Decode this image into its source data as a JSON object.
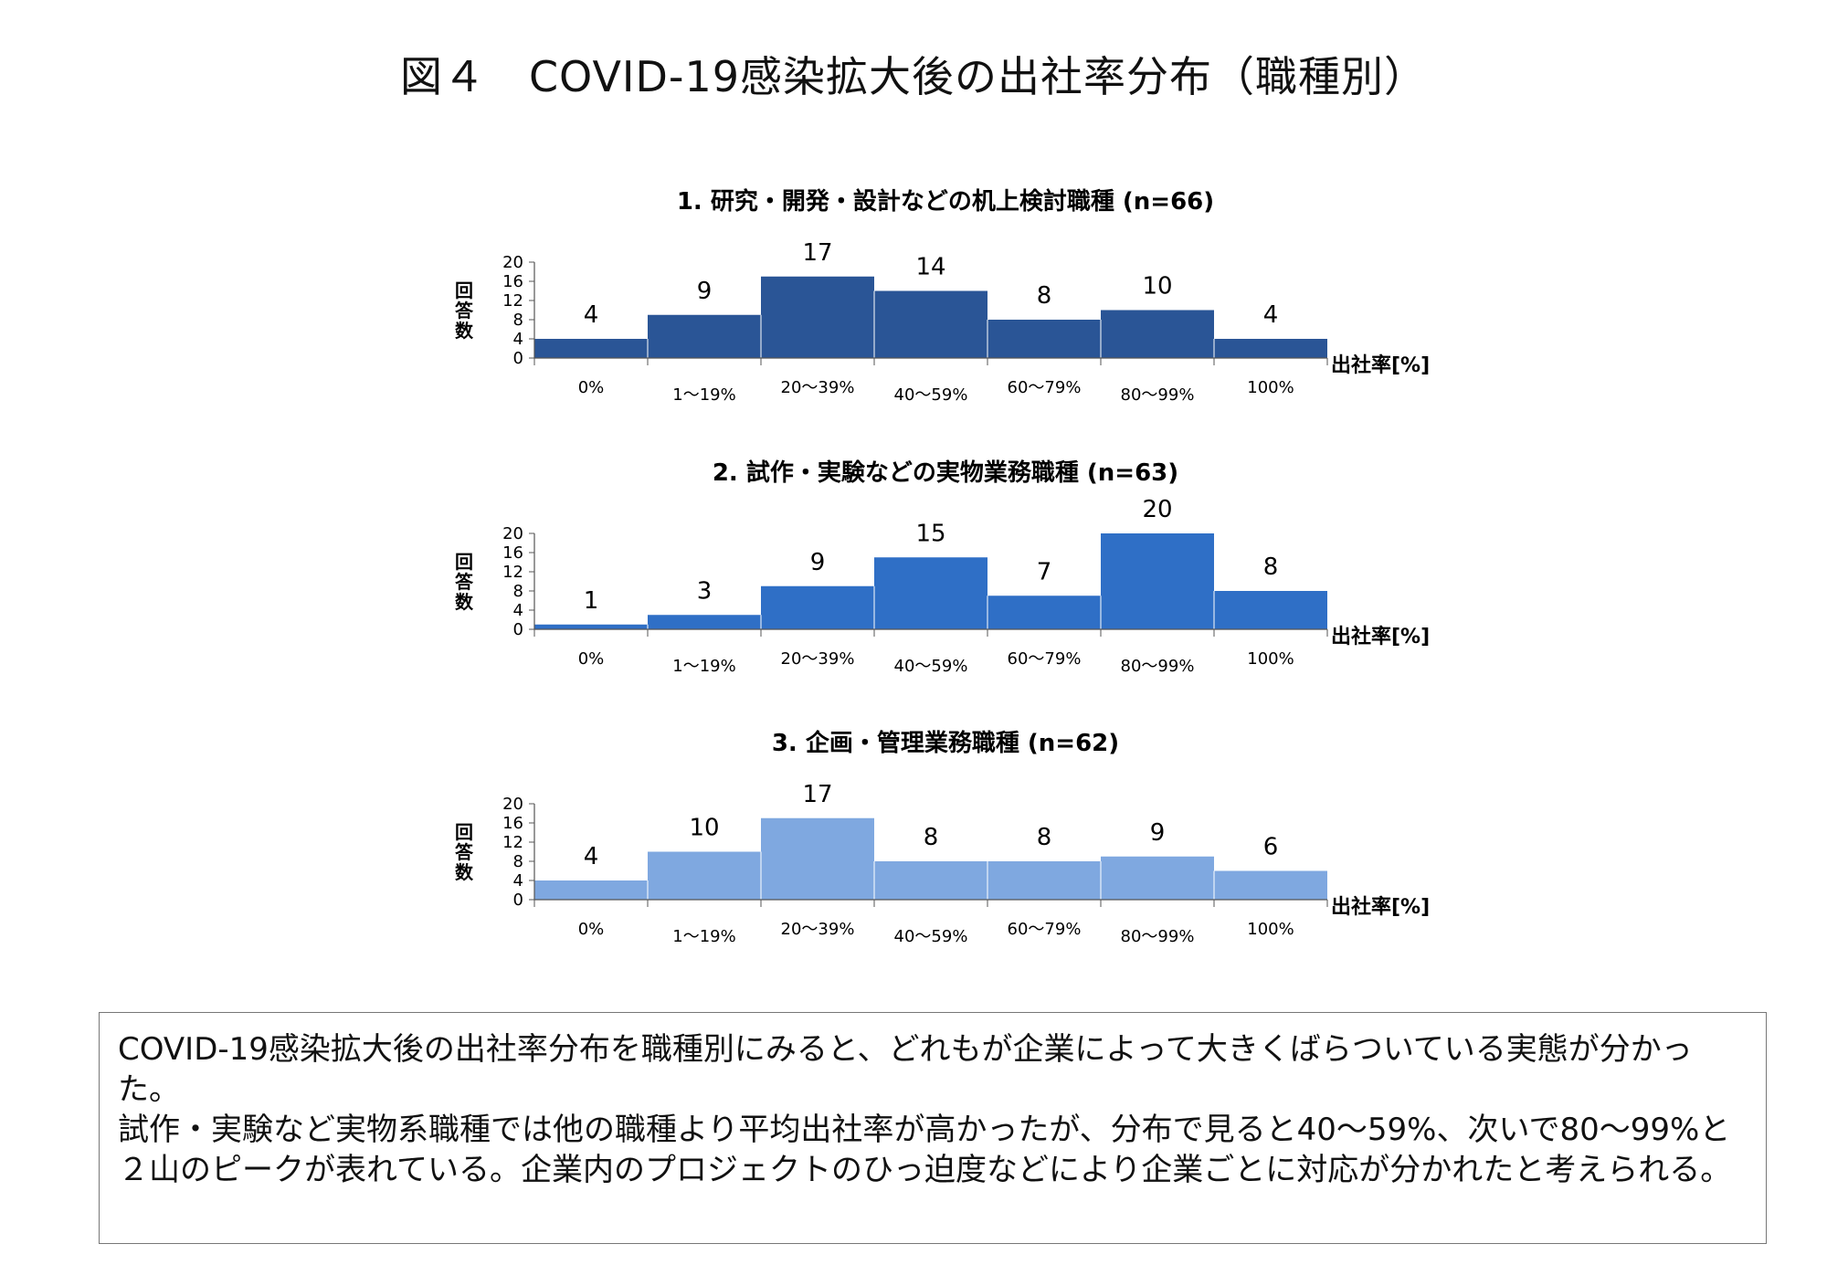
{
  "title": "図４　COVID-19感染拡大後の出社率分布（職種別）",
  "chart_data": [
    {
      "type": "bar",
      "title": "1. 研究・開発・設計などの机上検討職種 (n=66)",
      "ylabel": "回答数",
      "xlabel": "出社率[%]",
      "categories": [
        "0%",
        "1〜19%",
        "20〜39%",
        "40〜59%",
        "60〜79%",
        "80〜99%",
        "100%"
      ],
      "values": [
        4,
        9,
        17,
        14,
        8,
        10,
        4
      ],
      "ylim": [
        0,
        20
      ],
      "yticks": [
        "0",
        "4",
        "8",
        "12",
        "16",
        "20"
      ],
      "color": "#2a5596"
    },
    {
      "type": "bar",
      "title": "2. 試作・実験などの実物業務職種 (n=63)",
      "ylabel": "回答数",
      "xlabel": "出社率[%]",
      "categories": [
        "0%",
        "1〜19%",
        "20〜39%",
        "40〜59%",
        "60〜79%",
        "80〜99%",
        "100%"
      ],
      "values": [
        1,
        3,
        9,
        15,
        7,
        20,
        8
      ],
      "ylim": [
        0,
        20
      ],
      "yticks": [
        "0",
        "4",
        "8",
        "12",
        "16",
        "20"
      ],
      "color": "#2f6fc6"
    },
    {
      "type": "bar",
      "title": "3. 企画・管理業務職種 (n=62)",
      "ylabel": "回答数",
      "xlabel": "出社率[%]",
      "categories": [
        "0%",
        "1〜19%",
        "20〜39%",
        "40〜59%",
        "60〜79%",
        "80〜99%",
        "100%"
      ],
      "values": [
        4,
        10,
        17,
        8,
        8,
        9,
        6
      ],
      "ylim": [
        0,
        20
      ],
      "yticks": [
        "0",
        "4",
        "8",
        "12",
        "16",
        "20"
      ],
      "color": "#7fa8e0"
    }
  ],
  "note": {
    "paragraph1": "COVID-19感染拡大後の出社率分布を職種別にみると、どれもが企業によって大きくばらついている実態が分かった。",
    "paragraph2": "試作・実験など実物系職種では他の職種より平均出社率が高かったが、分布で見ると40〜59%、次いで80〜99%と２山のピークが表れている。企業内のプロジェクトのひっ迫度などにより企業ごとに対応が分かれたと考えられる。"
  }
}
